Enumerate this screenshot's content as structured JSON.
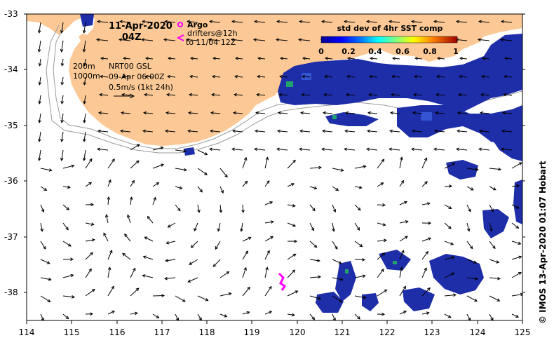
{
  "title": {
    "date": "11-Apr-2020",
    "time": "04Z"
  },
  "legend": {
    "argo_label": "Argo",
    "drifter_label": "drifters@12h",
    "drifter_to": "to 11/04 12Z",
    "argo_color": "#ff00ff",
    "drifter_color": "#ff00ff"
  },
  "colorbar": {
    "title": "std dev of 4hr SST comp",
    "ticks": [
      "0",
      "0.2",
      "0.4",
      "0.6",
      "0.8",
      "1"
    ],
    "min": 0,
    "max": 1
  },
  "info": {
    "isobath_shallow": "200m",
    "isobath_deep": "1000m",
    "model": "NRT00 GSL",
    "model_time": "09-Apr 06:00Z",
    "scale_text": "0.5m/s (1kt 24h)"
  },
  "credit": "©  IMOS 13-Apr-2020 01:07 Hobart",
  "axes": {
    "x_ticks": [
      "114",
      "115",
      "116",
      "117",
      "118",
      "119",
      "120",
      "121",
      "122",
      "123",
      "124",
      "125"
    ],
    "y_ticks": [
      "-33",
      "-34",
      "-35",
      "-36",
      "-37",
      "-38"
    ],
    "xlim": [
      114,
      125
    ],
    "ylim": [
      -38.5,
      -33
    ]
  },
  "colors": {
    "land": "#fcc996",
    "sst_dark": "#1e2da8",
    "sst_mid": "#3454d4",
    "sst_light": "#5a86e0",
    "sst_high": "#21a36a",
    "isobath": "#9a9a9a",
    "arrows": "#000000",
    "frame": "#000000"
  }
}
